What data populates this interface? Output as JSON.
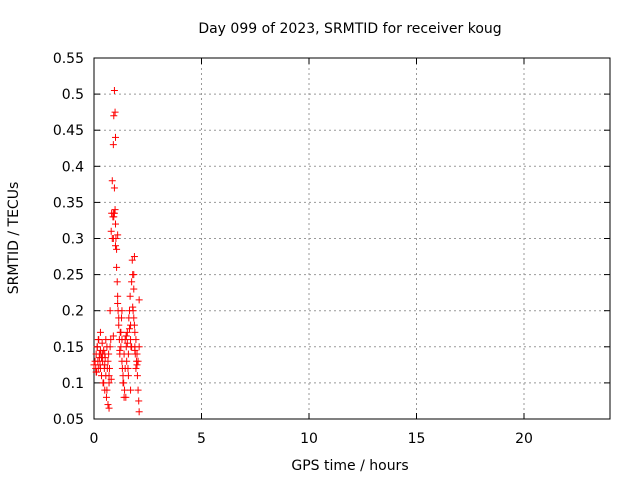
{
  "chart_data": {
    "type": "scatter",
    "title": "Day 099 of 2023, SRMTID for receiver koug",
    "xlabel": "GPS time / hours",
    "ylabel": "SRMTID / TECUs",
    "xlim": [
      0,
      24
    ],
    "ylim": [
      0.05,
      0.55
    ],
    "xticks": [
      0,
      5,
      10,
      15,
      20
    ],
    "xtick_labels": [
      "0",
      "5",
      "10",
      "15",
      "20"
    ],
    "yticks": [
      0.05,
      0.1,
      0.15,
      0.2,
      0.25,
      0.3,
      0.35,
      0.4,
      0.45,
      0.5,
      0.55
    ],
    "ytick_labels": [
      "0.05",
      "0.1",
      "0.15",
      "0.2",
      "0.25",
      "0.3",
      "0.35",
      "0.4",
      "0.45",
      "0.5",
      "0.55"
    ],
    "grid": true,
    "marker": "+",
    "color": "#ff0000",
    "series": [
      {
        "name": "SRMTID",
        "x": [
          0.0,
          0.05,
          0.08,
          0.1,
          0.12,
          0.15,
          0.18,
          0.2,
          0.22,
          0.25,
          0.28,
          0.3,
          0.32,
          0.35,
          0.38,
          0.4,
          0.42,
          0.45,
          0.48,
          0.5,
          0.52,
          0.55,
          0.58,
          0.6,
          0.62,
          0.65,
          0.68,
          0.7,
          0.72,
          0.75,
          0.78,
          0.8,
          0.82,
          0.85,
          0.88,
          0.9,
          0.92,
          0.95,
          0.98,
          1.0,
          1.02,
          1.05,
          1.08,
          1.1,
          1.12,
          1.15,
          1.18,
          1.2,
          1.22,
          1.25,
          1.28,
          1.3,
          1.32,
          1.35,
          1.38,
          1.4,
          1.42,
          1.45,
          1.48,
          1.5,
          1.52,
          1.55,
          1.58,
          1.6,
          1.62,
          1.65,
          1.68,
          1.7,
          1.72,
          1.75,
          1.78,
          1.8,
          1.82,
          1.85,
          1.88,
          1.9,
          1.92,
          1.95,
          1.98,
          2.0,
          2.02,
          2.05,
          2.08,
          2.1,
          0.1,
          0.15,
          0.2,
          0.25,
          0.3,
          0.35,
          0.4,
          0.45,
          0.5,
          0.55,
          0.6,
          0.65,
          0.7,
          0.75,
          0.8,
          0.85,
          0.9,
          0.95,
          1.0,
          1.05,
          1.1,
          1.15,
          1.2,
          1.25,
          1.3,
          1.35,
          1.4,
          1.45,
          1.5,
          1.55,
          1.6,
          1.65,
          1.7,
          1.75,
          1.8,
          1.85,
          1.9,
          1.95,
          2.0,
          2.05,
          2.1,
          0.3,
          0.5,
          0.7,
          0.9,
          1.1,
          1.3,
          1.5,
          1.7,
          1.9,
          2.1,
          0.95,
          0.98,
          0.9,
          0.92,
          1.0,
          1.85,
          1.88
        ],
        "y": [
          0.125,
          0.13,
          0.12,
          0.14,
          0.115,
          0.15,
          0.13,
          0.12,
          0.16,
          0.135,
          0.125,
          0.17,
          0.14,
          0.11,
          0.155,
          0.13,
          0.1,
          0.145,
          0.12,
          0.09,
          0.135,
          0.11,
          0.08,
          0.15,
          0.12,
          0.07,
          0.14,
          0.065,
          0.12,
          0.2,
          0.16,
          0.31,
          0.335,
          0.38,
          0.33,
          0.43,
          0.47,
          0.505,
          0.475,
          0.44,
          0.3,
          0.285,
          0.24,
          0.22,
          0.2,
          0.18,
          0.16,
          0.14,
          0.17,
          0.15,
          0.19,
          0.13,
          0.12,
          0.11,
          0.1,
          0.14,
          0.09,
          0.16,
          0.08,
          0.15,
          0.13,
          0.17,
          0.12,
          0.11,
          0.19,
          0.2,
          0.22,
          0.16,
          0.15,
          0.24,
          0.27,
          0.25,
          0.2,
          0.19,
          0.18,
          0.15,
          0.14,
          0.16,
          0.13,
          0.125,
          0.11,
          0.09,
          0.075,
          0.06,
          0.115,
          0.15,
          0.16,
          0.14,
          0.12,
          0.135,
          0.14,
          0.1,
          0.125,
          0.16,
          0.09,
          0.13,
          0.11,
          0.15,
          0.105,
          0.3,
          0.335,
          0.37,
          0.32,
          0.26,
          0.21,
          0.19,
          0.145,
          0.17,
          0.16,
          0.1,
          0.08,
          0.12,
          0.165,
          0.155,
          0.14,
          0.175,
          0.18,
          0.15,
          0.205,
          0.23,
          0.17,
          0.12,
          0.14,
          0.13,
          0.15,
          0.145,
          0.14,
          0.1,
          0.165,
          0.305,
          0.2,
          0.165,
          0.09,
          0.145,
          0.215,
          0.335,
          0.34,
          0.3,
          0.33,
          0.29,
          0.25,
          0.275
        ]
      }
    ]
  }
}
